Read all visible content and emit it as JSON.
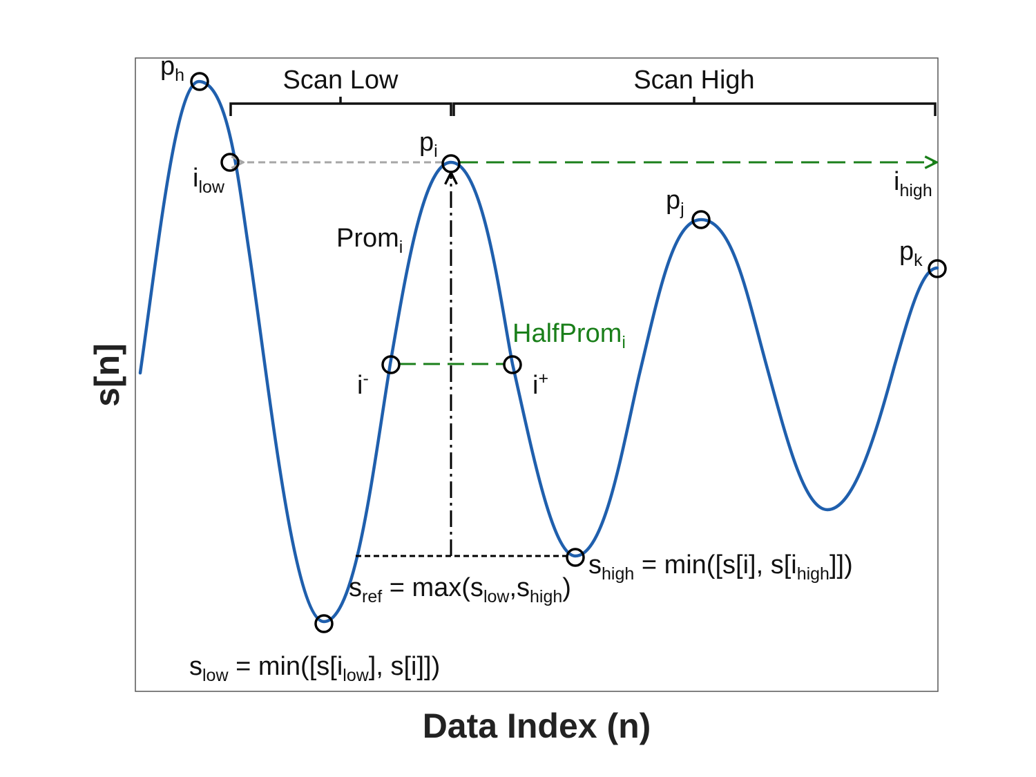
{
  "axes": {
    "xlabel": "Data Index (n)",
    "ylabel": "s[n]"
  },
  "brackets": {
    "scan_low": "Scan Low",
    "scan_high": "Scan High"
  },
  "points": {
    "ph": {
      "base": "p",
      "sub": "h"
    },
    "pi": {
      "base": "p",
      "sub": "i"
    },
    "pj": {
      "base": "p",
      "sub": "j"
    },
    "pk": {
      "base": "p",
      "sub": "k"
    },
    "ilow": {
      "base": "i",
      "sub": "low"
    },
    "ihigh": {
      "base": "i",
      "sub": "high"
    },
    "iminus": {
      "base": "i",
      "sup": "-"
    },
    "iplus": {
      "base": "i",
      "sup": "+"
    }
  },
  "annotations": {
    "prom": {
      "base": "Prom",
      "sub": "i"
    },
    "halfprom": {
      "base": "HalfProm",
      "sub": "i"
    },
    "s_high": {
      "s": "s",
      "s_sub": "high",
      "eq": " = min([s[i], s[i",
      "i_sub": "high",
      "end": "]])"
    },
    "s_ref": {
      "s": "s",
      "s_sub": "ref",
      "eq": " = max(s",
      "a_sub": "low",
      "comma": ",s",
      "b_sub": "high",
      "end": ")"
    },
    "s_low": {
      "s": "s",
      "s_sub": "low",
      "eq": " = min([s[i",
      "i_sub": "low",
      "end": "], s[i]])"
    }
  },
  "colors": {
    "curve": "#1f5fad",
    "halfprom": "#1a7f1a",
    "scan_high_arrow": "#1a7f1a",
    "scan_low_arrow": "#a6a6a6",
    "markers": "#000000"
  }
}
